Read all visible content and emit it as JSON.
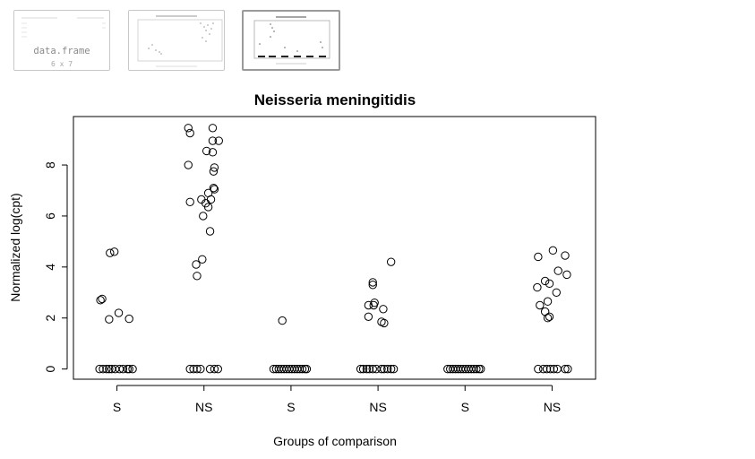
{
  "history": {
    "thumbs": [
      {
        "kind": "data-frame",
        "label": "data.frame",
        "dims": "6 x 7",
        "selected": false
      },
      {
        "kind": "plot",
        "selected": false
      },
      {
        "kind": "plot",
        "selected": true
      }
    ]
  },
  "chart_data": {
    "type": "scatter",
    "title": "Neisseria meningitidis",
    "xlabel": "Groups of comparison",
    "ylabel": "Normalized log(cpt)",
    "categories": [
      "S",
      "NS",
      "S",
      "NS",
      "S",
      "NS"
    ],
    "yticks": [
      0,
      2,
      4,
      6,
      8
    ],
    "ylim": [
      -0.4,
      9.9
    ],
    "grid": false,
    "legend": "none",
    "groups": [
      {
        "category": "S",
        "points": [
          [
            0.83,
            2.75
          ],
          [
            0.81,
            2.7
          ],
          [
            0.92,
            4.55
          ],
          [
            0.97,
            4.6
          ],
          [
            0.91,
            1.95
          ],
          [
            1.02,
            2.2
          ],
          [
            1.14,
            1.97
          ],
          [
            0.8,
            0
          ],
          [
            0.84,
            0
          ],
          [
            0.88,
            0
          ],
          [
            0.91,
            0
          ],
          [
            0.94,
            0
          ],
          [
            0.98,
            0
          ],
          [
            1.03,
            0
          ],
          [
            1.07,
            0
          ],
          [
            1.12,
            0
          ],
          [
            1.14,
            0
          ],
          [
            1.18,
            0
          ]
        ]
      },
      {
        "category": "NS",
        "points": [
          [
            1.82,
            9.45
          ],
          [
            1.84,
            9.25
          ],
          [
            2.1,
            9.45
          ],
          [
            2.1,
            8.95
          ],
          [
            2.17,
            8.95
          ],
          [
            1.82,
            8.0
          ],
          [
            2.03,
            8.55
          ],
          [
            2.1,
            8.5
          ],
          [
            2.12,
            7.9
          ],
          [
            2.11,
            7.75
          ],
          [
            2.11,
            7.1
          ],
          [
            2.12,
            7.05
          ],
          [
            2.05,
            6.9
          ],
          [
            1.97,
            6.65
          ],
          [
            2.08,
            6.65
          ],
          [
            1.84,
            6.55
          ],
          [
            2.02,
            6.5
          ],
          [
            2.05,
            6.35
          ],
          [
            1.99,
            6.0
          ],
          [
            2.07,
            5.4
          ],
          [
            1.91,
            4.1
          ],
          [
            1.98,
            4.3
          ],
          [
            1.92,
            3.65
          ],
          [
            1.84,
            0
          ],
          [
            1.88,
            0
          ],
          [
            1.92,
            0
          ],
          [
            1.96,
            0
          ],
          [
            2.07,
            0
          ],
          [
            2.12,
            0
          ],
          [
            2.16,
            0
          ]
        ]
      },
      {
        "category": "S",
        "points": [
          [
            2.9,
            1.9
          ],
          [
            2.8,
            0
          ],
          [
            2.83,
            0
          ],
          [
            2.86,
            0
          ],
          [
            2.89,
            0
          ],
          [
            2.92,
            0
          ],
          [
            2.95,
            0
          ],
          [
            2.98,
            0
          ],
          [
            3.01,
            0
          ],
          [
            3.04,
            0
          ],
          [
            3.07,
            0
          ],
          [
            3.1,
            0
          ],
          [
            3.13,
            0
          ],
          [
            3.16,
            0
          ],
          [
            3.18,
            0
          ]
        ]
      },
      {
        "category": "NS",
        "points": [
          [
            3.94,
            3.4
          ],
          [
            3.94,
            3.3
          ],
          [
            3.89,
            2.5
          ],
          [
            3.95,
            2.5
          ],
          [
            3.96,
            2.6
          ],
          [
            4.06,
            2.35
          ],
          [
            3.89,
            2.05
          ],
          [
            4.04,
            1.85
          ],
          [
            4.07,
            1.8
          ],
          [
            4.15,
            4.2
          ],
          [
            3.8,
            0
          ],
          [
            3.83,
            0
          ],
          [
            3.87,
            0
          ],
          [
            3.9,
            0
          ],
          [
            3.94,
            0
          ],
          [
            3.98,
            0
          ],
          [
            4.04,
            0
          ],
          [
            4.07,
            0
          ],
          [
            4.11,
            0
          ],
          [
            4.15,
            0
          ],
          [
            4.18,
            0
          ]
        ]
      },
      {
        "category": "S",
        "points": [
          [
            4.8,
            0
          ],
          [
            4.83,
            0
          ],
          [
            4.86,
            0
          ],
          [
            4.89,
            0
          ],
          [
            4.92,
            0
          ],
          [
            4.95,
            0
          ],
          [
            4.98,
            0
          ],
          [
            5.01,
            0
          ],
          [
            5.04,
            0
          ],
          [
            5.07,
            0
          ],
          [
            5.1,
            0
          ],
          [
            5.13,
            0
          ],
          [
            5.16,
            0
          ],
          [
            5.18,
            0
          ]
        ]
      },
      {
        "category": "NS",
        "points": [
          [
            5.84,
            4.4
          ],
          [
            6.01,
            4.65
          ],
          [
            6.15,
            4.45
          ],
          [
            5.92,
            3.45
          ],
          [
            5.97,
            3.35
          ],
          [
            6.07,
            3.85
          ],
          [
            5.83,
            3.2
          ],
          [
            6.05,
            3.0
          ],
          [
            5.95,
            2.65
          ],
          [
            5.86,
            2.5
          ],
          [
            5.92,
            2.25
          ],
          [
            5.95,
            2.0
          ],
          [
            5.97,
            2.05
          ],
          [
            6.17,
            3.7
          ],
          [
            5.84,
            0
          ],
          [
            5.9,
            0
          ],
          [
            5.94,
            0
          ],
          [
            5.98,
            0
          ],
          [
            6.02,
            0
          ],
          [
            6.06,
            0
          ],
          [
            6.15,
            0
          ],
          [
            6.18,
            0
          ]
        ]
      }
    ]
  }
}
